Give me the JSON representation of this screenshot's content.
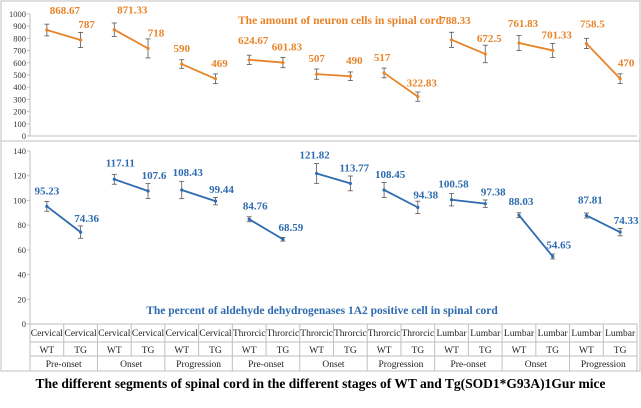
{
  "caption": "The different segments of spinal cord in the different stages of WT and Tg(SOD1*G93A)1Gur mice",
  "categories": [
    {
      "segment": "Cervical",
      "genotype": "WT"
    },
    {
      "segment": "Cervical",
      "genotype": "TG"
    },
    {
      "segment": "Cervical",
      "genotype": "WT"
    },
    {
      "segment": "Cervical",
      "genotype": "TG"
    },
    {
      "segment": "Cervical",
      "genotype": "WT"
    },
    {
      "segment": "Cervical",
      "genotype": "TG"
    },
    {
      "segment": "Throrcic",
      "genotype": "WT"
    },
    {
      "segment": "Throrcic",
      "genotype": "TG"
    },
    {
      "segment": "Throrcic",
      "genotype": "WT"
    },
    {
      "segment": "Throrcic",
      "genotype": "TG"
    },
    {
      "segment": "Throrcic",
      "genotype": "WT"
    },
    {
      "segment": "Throrcic",
      "genotype": "TG"
    },
    {
      "segment": "Lumbar",
      "genotype": "WT"
    },
    {
      "segment": "Lumbar",
      "genotype": "TG"
    },
    {
      "segment": "Lumbar",
      "genotype": "WT"
    },
    {
      "segment": "Lumbar",
      "genotype": "TG"
    },
    {
      "segment": "Lumbar",
      "genotype": "WT"
    },
    {
      "segment": "Lumbar",
      "genotype": "TG"
    }
  ],
  "stages": [
    {
      "label": "Pre-onset",
      "start": 0,
      "end": 1
    },
    {
      "label": "Onset",
      "start": 2,
      "end": 3
    },
    {
      "label": "Progression",
      "start": 4,
      "end": 5
    },
    {
      "label": "Pre-onset",
      "start": 6,
      "end": 7
    },
    {
      "label": "Onset",
      "start": 8,
      "end": 9
    },
    {
      "label": "Progression",
      "start": 10,
      "end": 11
    },
    {
      "label": "Pre-onset",
      "start": 12,
      "end": 13
    },
    {
      "label": "Onset",
      "start": 14,
      "end": 15
    },
    {
      "label": "Progression",
      "start": 16,
      "end": 17
    }
  ],
  "chart_data": [
    {
      "type": "line",
      "title": "The amount of neuron cells in spinal cord",
      "color": "#e8842a",
      "ylim": [
        0,
        1000
      ],
      "yticks": [
        0,
        100,
        200,
        300,
        400,
        500,
        600,
        700,
        800,
        900,
        1000
      ],
      "grid": false,
      "values": [
        868.67,
        787,
        871.33,
        718,
        590,
        469,
        624.67,
        601.83,
        507,
        490,
        517,
        322.83,
        788.33,
        672.5,
        761.83,
        701.33,
        758.5,
        470
      ],
      "labels": [
        "868.67",
        "787",
        "871.33",
        "718",
        "590",
        "469",
        "624.67",
        "601.83",
        "507",
        "490",
        "517",
        "322.83",
        "788.33",
        "672.5",
        "761.83",
        "701.33",
        "758.5",
        "470"
      ],
      "errors": [
        48,
        62,
        55,
        78,
        35,
        40,
        38,
        42,
        42,
        35,
        40,
        38,
        62,
        72,
        62,
        58,
        42,
        40
      ],
      "segments": [
        [
          0,
          1
        ],
        [
          2,
          3
        ],
        [
          4,
          5
        ],
        [
          6,
          7
        ],
        [
          8,
          9
        ],
        [
          10,
          11
        ],
        [
          12,
          13
        ],
        [
          14,
          15
        ],
        [
          16,
          17
        ]
      ]
    },
    {
      "type": "line",
      "title": "The percent of aldehyde dehydrogenases 1A2 positive cell in spinal cord",
      "color": "#2e6bb0",
      "ylim": [
        0,
        140
      ],
      "yticks": [
        0,
        20,
        40,
        60,
        80,
        100,
        120,
        140
      ],
      "grid": false,
      "values": [
        95.23,
        74.36,
        117.11,
        107.6,
        108.43,
        99.44,
        84.76,
        68.59,
        121.82,
        113.77,
        108.45,
        94.38,
        100.58,
        97.38,
        88.03,
        54.65,
        87.81,
        74.33
      ],
      "labels": [
        "95.23",
        "74.36",
        "117.11",
        "107.6",
        "108.43",
        "99.44",
        "84.76",
        "68.59",
        "121.82",
        "113.77",
        "108.45",
        "94.38",
        "100.58",
        "97.38",
        "88.03",
        "54.65",
        "87.81",
        "74.33"
      ],
      "errors": [
        4,
        5,
        4,
        6,
        7,
        3,
        2,
        1.5,
        8,
        6,
        6,
        5,
        5,
        3,
        2,
        2,
        2,
        3
      ],
      "segments": [
        [
          0,
          1
        ],
        [
          2,
          3
        ],
        [
          4,
          5
        ],
        [
          6,
          7
        ],
        [
          8,
          9
        ],
        [
          10,
          11
        ],
        [
          12,
          13
        ],
        [
          14,
          15
        ],
        [
          16,
          17
        ]
      ]
    }
  ]
}
